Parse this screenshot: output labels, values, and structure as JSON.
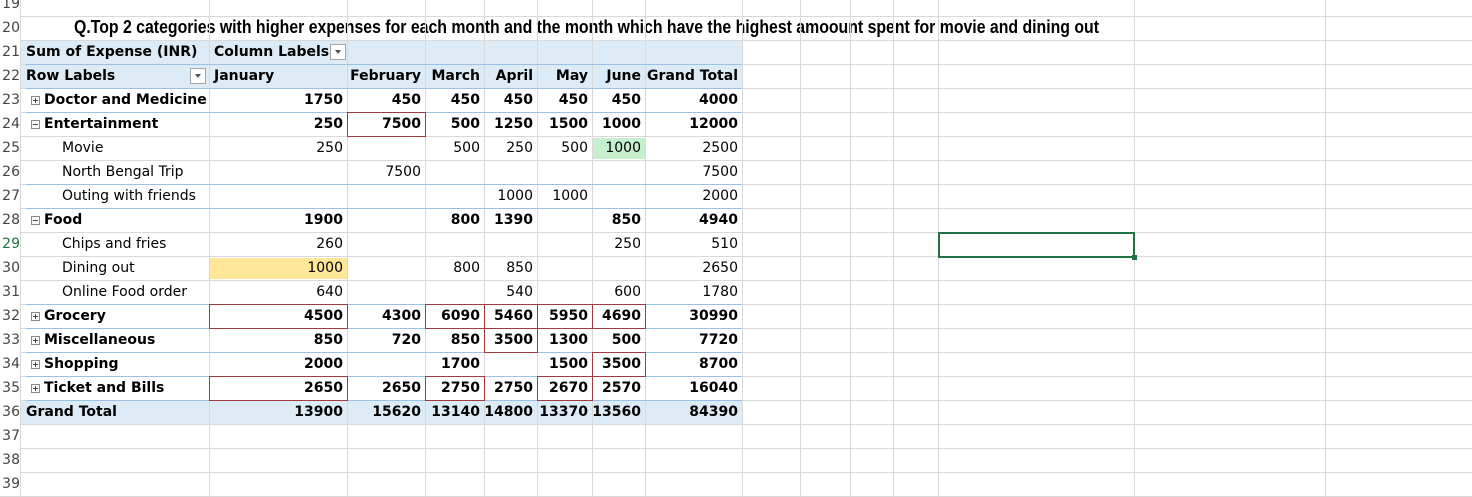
{
  "sheet": {
    "title": "Q.Top 2 categories with higher expenses for each month and the month which have the highest amoount spent for movie and dining out",
    "row_numbers": [
      "19",
      "20",
      "21",
      "22",
      "23",
      "24",
      "25",
      "26",
      "27",
      "28",
      "29",
      "30",
      "31",
      "32",
      "33",
      "34",
      "35",
      "36",
      "37",
      "38",
      "39"
    ],
    "selected_row": "29"
  },
  "pivot": {
    "values_label": "Sum of Expense (INR)",
    "column_labels": "Column Labels",
    "row_labels": "Row Labels",
    "months": [
      "January",
      "February",
      "March",
      "April",
      "May",
      "June"
    ],
    "grand_total_label": "Grand Total",
    "rows": [
      {
        "label": "Doctor and Medicine",
        "level": 0,
        "toggle": "plus",
        "values": [
          "1750",
          "450",
          "450",
          "450",
          "450",
          "450"
        ],
        "total": "4000"
      },
      {
        "label": "Entertainment",
        "level": 0,
        "toggle": "minus",
        "values": [
          "250",
          "7500",
          "500",
          "1250",
          "1500",
          "1000"
        ],
        "total": "12000"
      },
      {
        "label": "Movie",
        "level": 1,
        "values": [
          "250",
          "",
          "500",
          "250",
          "500",
          "1000"
        ],
        "total": "2500"
      },
      {
        "label": "North Bengal Trip",
        "level": 1,
        "values": [
          "",
          "7500",
          "",
          "",
          "",
          ""
        ],
        "total": "7500"
      },
      {
        "label": "Outing with friends",
        "level": 1,
        "values": [
          "",
          "",
          "",
          "1000",
          "1000",
          ""
        ],
        "total": "2000"
      },
      {
        "label": "Food",
        "level": 0,
        "toggle": "minus",
        "values": [
          "1900",
          "",
          "800",
          "1390",
          "",
          "850"
        ],
        "total": "4940"
      },
      {
        "label": "Chips and fries",
        "level": 1,
        "values": [
          "260",
          "",
          "",
          "",
          "",
          "250"
        ],
        "total": "510"
      },
      {
        "label": "Dining out",
        "level": 1,
        "values": [
          "1000",
          "",
          "800",
          "850",
          "",
          ""
        ],
        "total": "2650"
      },
      {
        "label": "Online Food order",
        "level": 1,
        "values": [
          "640",
          "",
          "",
          "540",
          "",
          "600"
        ],
        "total": "1780"
      },
      {
        "label": "Grocery",
        "level": 0,
        "toggle": "plus",
        "values": [
          "4500",
          "4300",
          "6090",
          "5460",
          "5950",
          "4690"
        ],
        "total": "30990"
      },
      {
        "label": "Miscellaneous",
        "level": 0,
        "toggle": "plus",
        "values": [
          "850",
          "720",
          "850",
          "3500",
          "1300",
          "500"
        ],
        "total": "7720"
      },
      {
        "label": "Shopping",
        "level": 0,
        "toggle": "plus",
        "values": [
          "2000",
          "",
          "1700",
          "",
          "1500",
          "3500"
        ],
        "total": "8700"
      },
      {
        "label": "Ticket and Bills",
        "level": 0,
        "toggle": "plus",
        "values": [
          "2650",
          "2650",
          "2750",
          "2750",
          "2670",
          "2570"
        ],
        "total": "16040"
      }
    ],
    "grand_total_values": [
      "13900",
      "15620",
      "13140",
      "14800",
      "13370",
      "13560"
    ],
    "grand_total_total": "84390"
  },
  "highlight_colors": {
    "green": "#c6efce",
    "yellow": "#ffe699",
    "top2_border": "#a23b3b",
    "selection": "#217346"
  }
}
